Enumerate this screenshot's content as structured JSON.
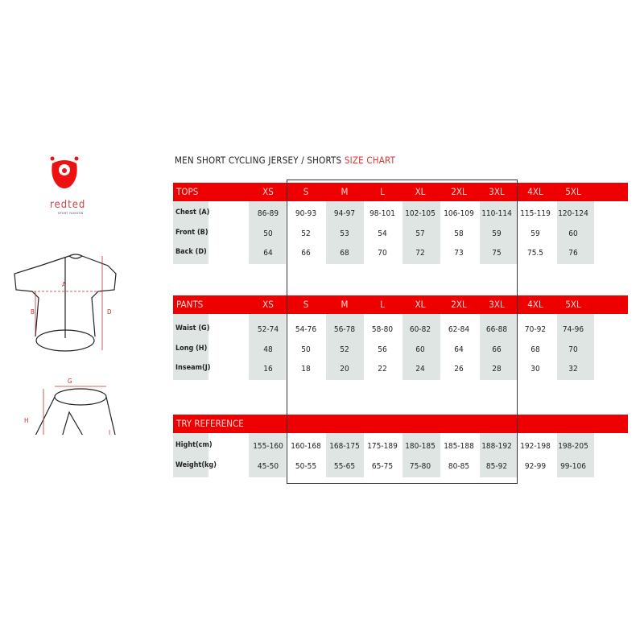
{
  "brand": {
    "name": "redted",
    "tagline": "SPORT FASHION",
    "color": "#ee1111"
  },
  "title": {
    "main": "MEN SHORT CYCLING JERSEY / SHORTS",
    "highlight": "SIZE CHART"
  },
  "diagram_labels": {
    "a": "A",
    "b": "B",
    "d": "D",
    "g": "G",
    "h": "H",
    "j": "J"
  },
  "accent": "#ee0000",
  "sizes": [
    "XS",
    "S",
    "M",
    "L",
    "XL",
    "2XL",
    "3XL",
    "4XL",
    "5XL"
  ],
  "sections": [
    {
      "name": "TOPS",
      "show_sizes": true,
      "rows": [
        {
          "label": "Chest (A)",
          "values": [
            "86-89",
            "90-93",
            "94-97",
            "98-101",
            "102-105",
            "106-109",
            "110-114",
            "115-119",
            "120-124"
          ]
        },
        {
          "label": "Front (B)",
          "values": [
            "50",
            "52",
            "53",
            "54",
            "57",
            "58",
            "59",
            "59",
            "60"
          ]
        },
        {
          "label": "Back (D)",
          "values": [
            "64",
            "66",
            "68",
            "70",
            "72",
            "73",
            "75",
            "75.5",
            "76"
          ]
        }
      ]
    },
    {
      "name": "PANTS",
      "show_sizes": true,
      "rows": [
        {
          "label": "Waist (G)",
          "values": [
            "52-74",
            "54-76",
            "56-78",
            "58-80",
            "60-82",
            "62-84",
            "66-88",
            "70-92",
            "74-96"
          ]
        },
        {
          "label": "Long (H)",
          "values": [
            "48",
            "50",
            "52",
            "56",
            "60",
            "64",
            "66",
            "68",
            "70"
          ]
        },
        {
          "label": "Inseam(J)",
          "values": [
            "16",
            "18",
            "20",
            "22",
            "24",
            "26",
            "28",
            "30",
            "32"
          ]
        }
      ]
    },
    {
      "name": "TRY REFERENCE",
      "show_sizes": false,
      "rows": [
        {
          "label": "Hight(cm)",
          "values": [
            "155-160",
            "160-168",
            "168-175",
            "175-189",
            "180-185",
            "185-188",
            "188-192",
            "192-198",
            "198-205"
          ]
        },
        {
          "label": "Weight(kg)",
          "values": [
            "45-50",
            "50-55",
            "55-65",
            "65-75",
            "75-80",
            "80-85",
            "85-92",
            "92-99",
            "99-106"
          ]
        }
      ]
    }
  ]
}
